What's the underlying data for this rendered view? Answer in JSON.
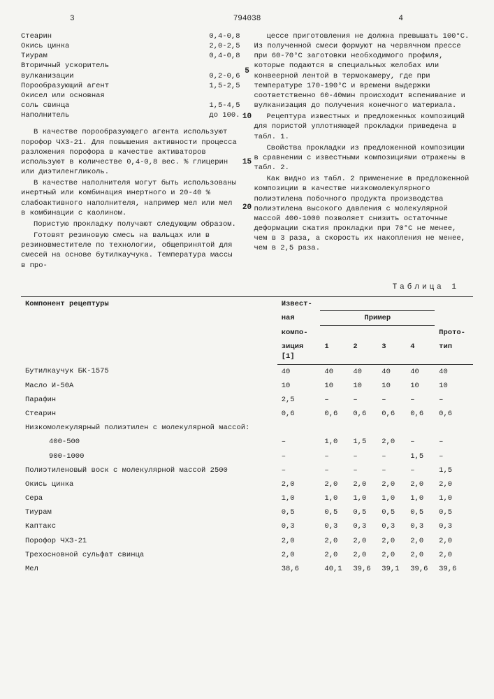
{
  "header": {
    "left_num": "3",
    "doc_number": "794038",
    "right_num": "4"
  },
  "ingredients": [
    {
      "name": "Стеарин",
      "val": "0,4-0,8"
    },
    {
      "name": "Окись цинка",
      "val": "2,0-2,5"
    },
    {
      "name": "Тиурам",
      "val": "0,4-0,8"
    },
    {
      "name": "Вторичный ускоритель",
      "val": ""
    },
    {
      "name": "вулканизации",
      "val": "0,2-0,6"
    },
    {
      "name": "Порообразующий агент",
      "val": "1,5-2,5"
    },
    {
      "name": "Окисел или основная",
      "val": ""
    },
    {
      "name": "соль свинца",
      "val": "1,5-4,5"
    },
    {
      "name": "Наполнитель",
      "val": "до 100."
    }
  ],
  "left_paras": [
    "В качестве порообразующего агента используют порофор ЧХЗ-21. Для повышения активности процесса разложения порофора в качестве активаторов используют в количестве 0,4-0,8 вес. % глицерин или диэтиленгликоль.",
    "В качестве наполнителя могут быть использованы инертный или комбинация инертного и 20-40 % слабоактивного наполнителя, например мел или мел в комбинации с каолином.",
    "Пористую прокладку получают следующим образом.",
    "Готовят резиновую смесь на вальцах или в резиновместителе по технологии, общепринятой для смесей на основе бутилкаучука. Температура массы в про-"
  ],
  "right_paras": [
    "цессе приготовления не должна превышать 100°С. Из полученной смеси формуют на червячном прессе при 60-70°С заготовки необходимого профиля, которые подаются в специальных желобах или конвеерной лентой в термокамеру, где при температуре 170-190°С и времени выдержки соответственно 60-40мин происходит вспенивание и вулканизация до получения конечного материала.",
    "Рецептура известных и предложенных композиций для пористой уплотняющей прокладки приведена в табл. 1.",
    "Свойства прокладки из предложенной композиции в сравнении с известными композициями отражены в табл. 2.",
    "Как видно из табл. 2 применение в предложенной композиции в качестве низкомолекулярного полиэтилена побочного продукта производства полиэтилена высокого давления с молекулярной массой 400-1000 позволяет снизить остаточные деформации сжатия прокладки при 70°С не менее, чем в 3 раза, а скорость их накопления не менее, чем в 2,5 раза."
  ],
  "line_markers": [
    "5",
    "10",
    "15",
    "20"
  ],
  "table": {
    "caption": "Таблица 1",
    "headers": {
      "col0": "Компонент рецептуры",
      "col1_a": "Извест-",
      "col1_b": "ная",
      "col1_c": "компо-",
      "col1_d": "зиция",
      "col1_e": "[1]",
      "primer": "Пример",
      "col2": "1",
      "col3": "2",
      "col4": "3",
      "col5": "4",
      "col6_a": "Прото-",
      "col6_b": "тип"
    },
    "rows": [
      {
        "name": "Бутилкаучук БК-1575",
        "v": [
          "40",
          "40",
          "40",
          "40",
          "40",
          "40"
        ]
      },
      {
        "name": "Масло И-50А",
        "v": [
          "10",
          "10",
          "10",
          "10",
          "10",
          "10"
        ]
      },
      {
        "name": "Парафин",
        "v": [
          "2,5",
          "–",
          "–",
          "–",
          "–",
          "–"
        ]
      },
      {
        "name": "Стеарин",
        "v": [
          "0,6",
          "0,6",
          "0,6",
          "0,6",
          "0,6",
          "0,6"
        ]
      },
      {
        "name": "Низкомолекулярный полиэтилен с молекулярной массой:",
        "v": [
          "",
          "",
          "",
          "",
          "",
          ""
        ]
      },
      {
        "name": "400-500",
        "sub": true,
        "v": [
          "–",
          "1,0",
          "1,5",
          "2,0",
          "–",
          "–"
        ]
      },
      {
        "name": "900-1000",
        "sub": true,
        "v": [
          "–",
          "–",
          "–",
          "–",
          "1,5",
          "–"
        ]
      },
      {
        "name": "Полиэтиленовый воск с молекулярной массой 2500",
        "v": [
          "–",
          "–",
          "–",
          "–",
          "–",
          "1,5"
        ]
      },
      {
        "name": "Окись цинка",
        "v": [
          "2,0",
          "2,0",
          "2,0",
          "2,0",
          "2,0",
          "2,0"
        ]
      },
      {
        "name": "Сера",
        "v": [
          "1,0",
          "1,0",
          "1,0",
          "1,0",
          "1,0",
          "1,0"
        ]
      },
      {
        "name": "Тиурам",
        "v": [
          "0,5",
          "0,5",
          "0,5",
          "0,5",
          "0,5",
          "0,5"
        ]
      },
      {
        "name": "Каптакс",
        "v": [
          "0,3",
          "0,3",
          "0,3",
          "0,3",
          "0,3",
          "0,3"
        ]
      },
      {
        "name": "Порофор ЧХЗ-21",
        "v": [
          "2,0",
          "2,0",
          "2,0",
          "2,0",
          "2,0",
          "2,0"
        ]
      },
      {
        "name": "Трехосновной сульфат свинца",
        "v": [
          "2,0",
          "2,0",
          "2,0",
          "2,0",
          "2,0",
          "2,0"
        ]
      },
      {
        "name": "Мел",
        "v": [
          "38,6",
          "40,1",
          "39,6",
          "39,1",
          "39,6",
          "39,6"
        ]
      }
    ]
  }
}
